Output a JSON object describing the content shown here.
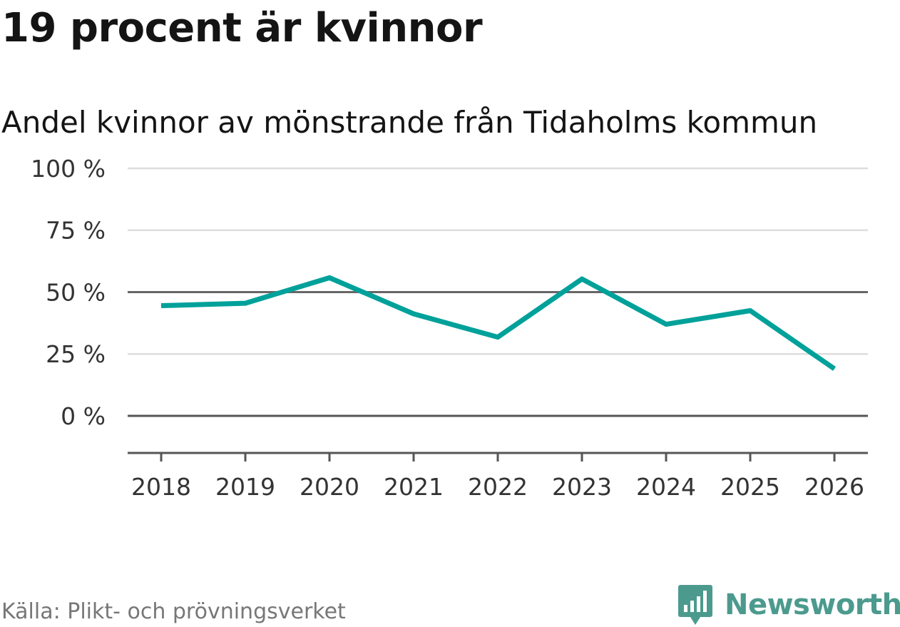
{
  "title": "19 procent är kvinnor",
  "subtitle": "Andel kvinnor av mönstrande från Tidaholms kommun",
  "source": "Källa: Plikt- och prövningsverket",
  "logo": {
    "text": "Newsworthy",
    "icon": "newsworthy-logo-icon",
    "color": "#4c9a8e"
  },
  "colors": {
    "line": "#00a19a",
    "grid": "#dddddd",
    "axis": "#555555",
    "reference": "#666666"
  },
  "chart_data": {
    "type": "line",
    "title": "Andel kvinnor av mönstrande från Tidaholms kommun",
    "xlabel": "",
    "ylabel": "",
    "categories": [
      "2018",
      "2019",
      "2020",
      "2021",
      "2022",
      "2023",
      "2024",
      "2025",
      "2026"
    ],
    "series": [
      {
        "name": "Andel kvinnor",
        "values": [
          44.5,
          45.5,
          55.8,
          41.2,
          31.8,
          55.3,
          37.0,
          42.5,
          19.0
        ]
      }
    ],
    "ylim": [
      -15,
      100
    ],
    "yticks": [
      0,
      25,
      50,
      75,
      100
    ],
    "ytick_labels": [
      "0 %",
      "25 %",
      "50 %",
      "75 %",
      "100 %"
    ],
    "reference_line": 50,
    "grid": true,
    "legend": "none"
  }
}
